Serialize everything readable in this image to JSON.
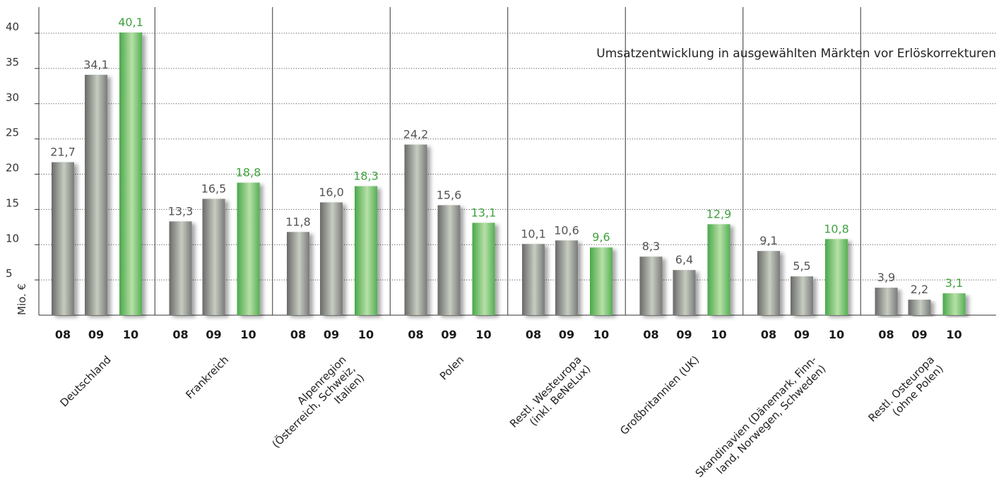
{
  "chart_data": {
    "type": "bar",
    "title": "Umsatzentwicklung in ausgewählten Märkten vor Erlöskorrekturen",
    "ylabel": "Mio. €",
    "xlabel": "",
    "ylim": [
      0,
      40
    ],
    "yticks": [
      5,
      10,
      15,
      20,
      25,
      30,
      35,
      40
    ],
    "grid": "horizontal dotted",
    "year_labels": [
      "08",
      "09",
      "10"
    ],
    "colors": {
      "08": "#8c8c8c",
      "09": "#8c8c8c",
      "10": "#5cb85c",
      "highlight_label": "#3fa33f",
      "label": "#555555"
    },
    "categories": [
      {
        "lines": [
          "Deutschland"
        ],
        "values": [
          21.7,
          34.1,
          40.1
        ],
        "labels": [
          "21,7",
          "34,1",
          "40,1"
        ]
      },
      {
        "lines": [
          "Frankreich"
        ],
        "values": [
          13.3,
          16.5,
          18.8
        ],
        "labels": [
          "13,3",
          "16,5",
          "18,8"
        ]
      },
      {
        "lines": [
          "Alpenregion",
          "(Österreich, Schweiz,",
          "Italien)"
        ],
        "values": [
          11.8,
          16.0,
          18.3
        ],
        "labels": [
          "11,8",
          "16,0",
          "18,3"
        ]
      },
      {
        "lines": [
          "Polen"
        ],
        "values": [
          24.2,
          15.6,
          13.1
        ],
        "labels": [
          "24,2",
          "15,6",
          "13,1"
        ]
      },
      {
        "lines": [
          "Restl. Westeuropa",
          "(inkl. BeNeLux)"
        ],
        "values": [
          10.1,
          10.6,
          9.6
        ],
        "labels": [
          "10,1",
          "10,6",
          "9,6"
        ]
      },
      {
        "lines": [
          "Großbritannien (UK)"
        ],
        "values": [
          8.3,
          6.4,
          12.9
        ],
        "labels": [
          "8,3",
          "6,4",
          "12,9"
        ]
      },
      {
        "lines": [
          "Skandinavien (Dänemark, Finn-",
          "land, Norwegen, Schweden)"
        ],
        "values": [
          9.1,
          5.5,
          10.8
        ],
        "labels": [
          "9,1",
          "5,5",
          "10,8"
        ]
      },
      {
        "lines": [
          "Restl. Osteuropa",
          "(ohne Polen)"
        ],
        "values": [
          3.9,
          2.2,
          3.1
        ],
        "labels": [
          "3,9",
          "2,2",
          "3,1"
        ]
      }
    ]
  }
}
